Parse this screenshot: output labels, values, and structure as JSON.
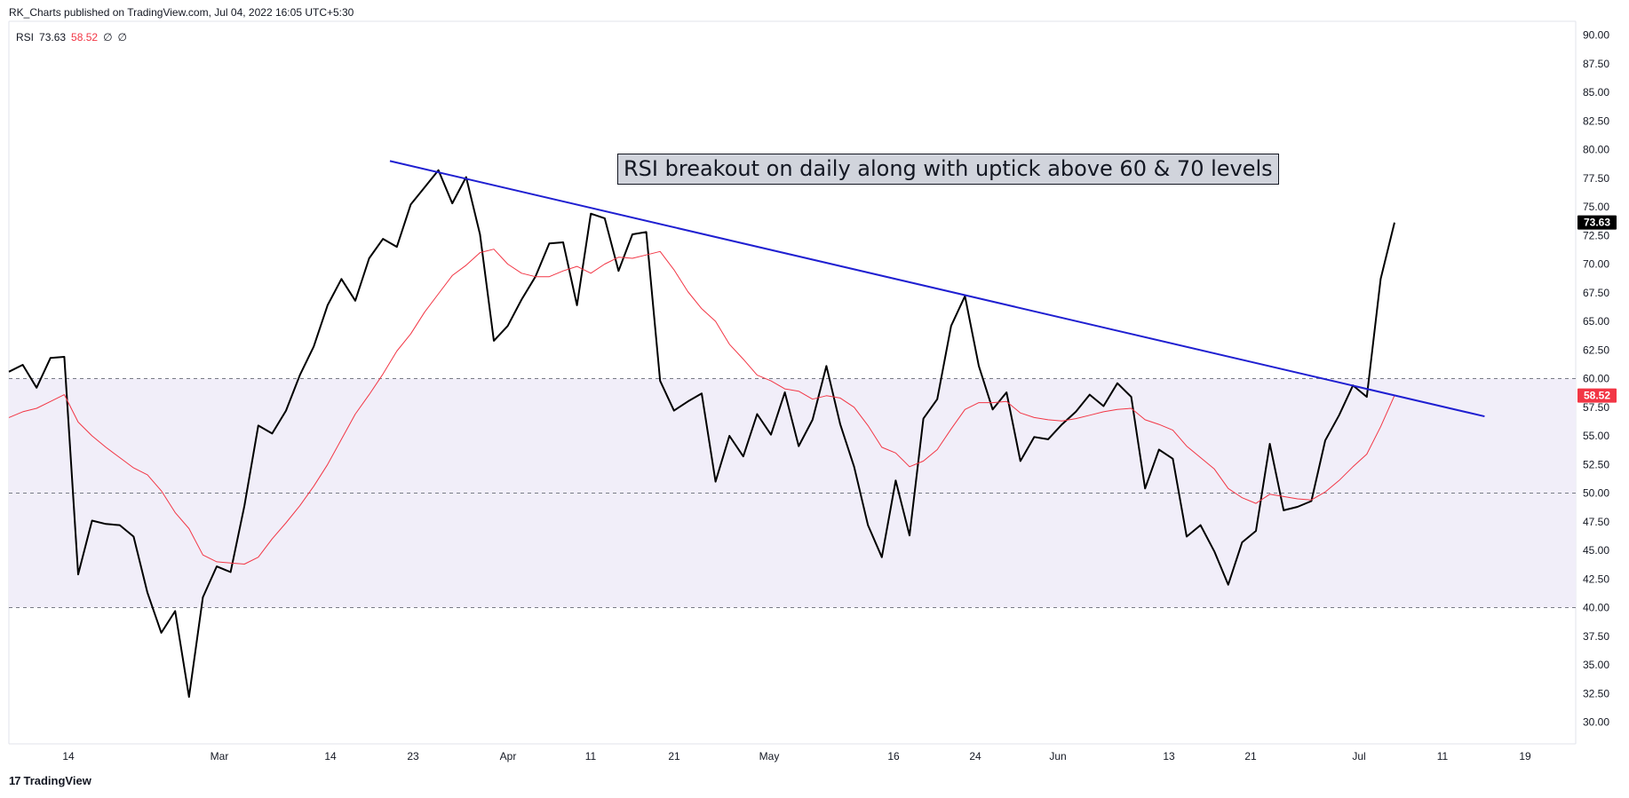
{
  "header": {
    "publisher_line": "RK_Charts published on TradingView.com, Jul 04, 2022 16:05 UTC+5:30"
  },
  "legend": {
    "indicator": "RSI",
    "rsi_value": "73.63",
    "ma_value": "58.52",
    "extra1": "∅",
    "extra2": "∅"
  },
  "annotation": {
    "text": "RSI breakout on daily along with uptick above 60 & 70 levels"
  },
  "footer": {
    "brand": "TradingView",
    "logo_icon": "tradingview-logo-icon"
  },
  "colors": {
    "rsi_line": "#000000",
    "ma_line": "#f23645",
    "trendline": "#1f1fd1",
    "band_fill": "#f1eef9",
    "grid_dash": "#787b86"
  },
  "chart_data": {
    "type": "line",
    "y_axis": {
      "ylim": [
        27.5,
        92.5
      ],
      "ticks": [
        "90.00",
        "87.50",
        "85.00",
        "82.50",
        "80.00",
        "77.50",
        "75.00",
        "72.50",
        "70.00",
        "67.50",
        "65.00",
        "62.50",
        "60.00",
        "57.50",
        "55.00",
        "52.50",
        "50.00",
        "47.50",
        "45.00",
        "42.50",
        "40.00",
        "37.50",
        "35.00",
        "32.50",
        "30.00"
      ]
    },
    "x_axis": {
      "tick_labels": [
        "14",
        "Mar",
        "14",
        "23",
        "Apr",
        "11",
        "21",
        "May",
        "16",
        "24",
        "Jun",
        "13",
        "21",
        "Jul",
        "11",
        "19"
      ]
    },
    "band": {
      "from": 40,
      "to": 60
    },
    "levels": [
      60,
      50,
      40
    ],
    "price_labels": [
      {
        "value": "73.63",
        "level": 73.63,
        "style": "rsi"
      },
      {
        "value": "58.52",
        "level": 58.52,
        "style": "ma"
      }
    ],
    "series": [
      {
        "key": "rsi",
        "values": [
          60.6,
          61.2,
          59.2,
          61.8,
          61.9,
          42.9,
          47.6,
          47.3,
          47.2,
          46.2,
          41.3,
          37.8,
          39.7,
          32.2,
          40.9,
          43.6,
          43.1,
          48.9,
          55.9,
          55.2,
          57.2,
          60.3,
          62.8,
          66.4,
          68.7,
          66.8,
          70.5,
          72.2,
          71.5,
          75.2,
          76.7,
          78.2,
          75.3,
          77.6,
          72.6,
          63.3,
          64.6,
          66.9,
          68.9,
          71.8,
          71.9,
          66.4,
          74.4,
          74.0,
          69.4,
          72.6,
          72.8,
          59.8,
          57.2,
          58.0,
          58.7,
          51.0,
          55.0,
          53.2,
          56.9,
          55.1,
          58.8,
          54.1,
          56.4,
          61.1,
          56.0,
          52.3,
          47.2,
          44.4,
          51.1,
          46.3,
          56.5,
          58.2,
          64.6,
          67.2,
          61.1,
          57.3,
          58.8,
          52.8,
          54.9,
          54.7,
          56.0,
          57.1,
          58.6,
          57.6,
          59.6,
          58.4,
          50.4,
          53.8,
          53.0,
          46.2,
          47.2,
          44.9,
          42.0,
          45.7,
          46.7,
          54.3,
          48.5,
          48.8,
          49.3,
          54.6,
          56.8,
          59.4,
          58.4,
          68.7,
          73.63
        ]
      },
      {
        "key": "ma",
        "values": [
          56.6,
          57.1,
          57.4,
          58.0,
          58.6,
          56.2,
          55.0,
          54.0,
          53.1,
          52.2,
          51.6,
          50.2,
          48.3,
          46.9,
          44.6,
          44.0,
          43.9,
          43.8,
          44.4,
          46.0,
          47.4,
          48.9,
          50.6,
          52.5,
          54.7,
          56.9,
          58.6,
          60.4,
          62.4,
          63.9,
          65.8,
          67.4,
          69.0,
          69.9,
          71.0,
          71.3,
          70.0,
          69.2,
          68.9,
          68.9,
          69.4,
          69.8,
          69.2,
          70.0,
          70.6,
          70.5,
          70.8,
          71.1,
          69.5,
          67.6,
          66.1,
          65.0,
          63.0,
          61.7,
          60.3,
          59.8,
          59.1,
          58.9,
          58.2,
          58.5,
          58.3,
          57.5,
          55.9,
          54.0,
          53.5,
          52.3,
          52.8,
          53.8,
          55.6,
          57.3,
          57.9,
          57.9,
          58.0,
          57.0,
          56.6,
          56.4,
          56.3,
          56.5,
          56.8,
          57.1,
          57.3,
          57.4,
          56.4,
          56.0,
          55.5,
          54.1,
          53.1,
          52.1,
          50.4,
          49.6,
          49.1,
          49.9,
          49.7,
          49.5,
          49.4,
          50.1,
          51.1,
          52.3,
          53.4,
          55.8,
          58.52
        ]
      }
    ],
    "trendline": {
      "start": {
        "index": 27.5,
        "value": 79.0
      },
      "end": {
        "index": 106.5,
        "value": 56.7
      }
    }
  }
}
